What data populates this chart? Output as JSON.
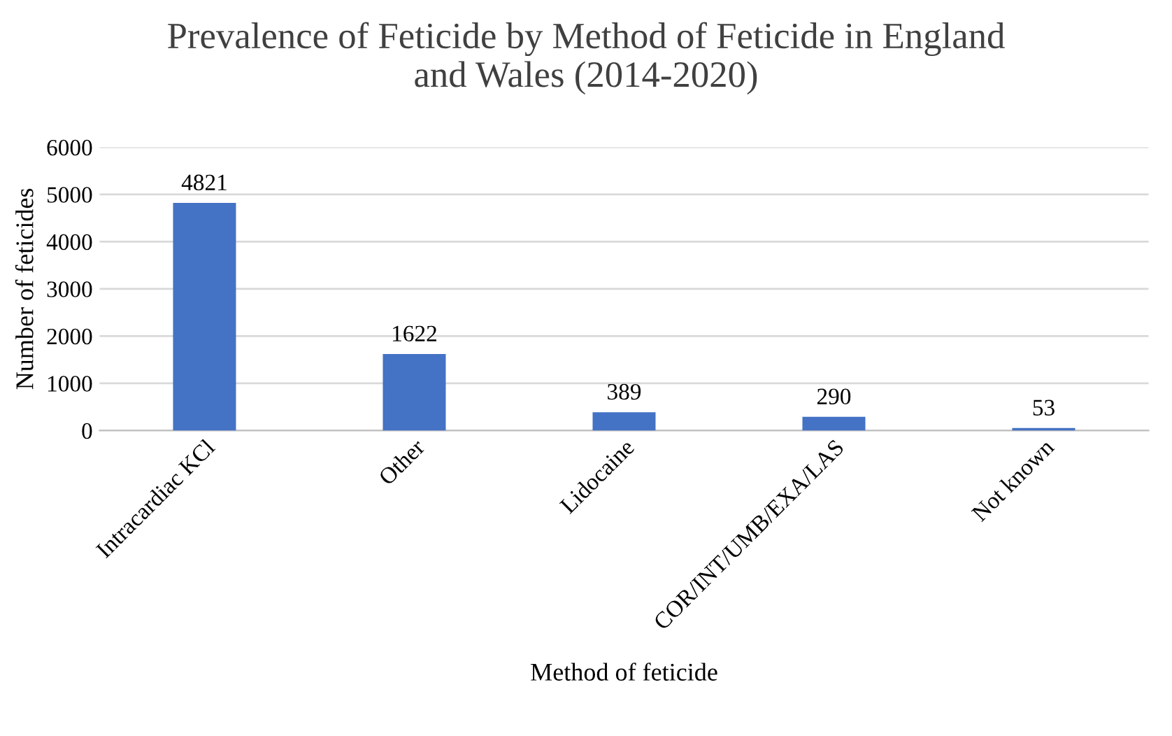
{
  "chart_data": {
    "type": "bar",
    "title": "Prevalence of Feticide by Method of Feticide in England\nand Wales (2014-2020)",
    "xlabel": "Method of feticide",
    "ylabel": "Number of feticides",
    "categories": [
      "Intracardiac KCl",
      "Other",
      "Lidocaine",
      "COR/INT/UMB/EXA/LAS",
      "Not known"
    ],
    "values": [
      4821,
      1622,
      389,
      290,
      53
    ],
    "color": "#4472c4",
    "ylim": [
      0,
      6000
    ],
    "yticks": [
      0,
      1000,
      2000,
      3000,
      4000,
      5000,
      6000
    ],
    "grid": "y",
    "data_labels": true
  }
}
